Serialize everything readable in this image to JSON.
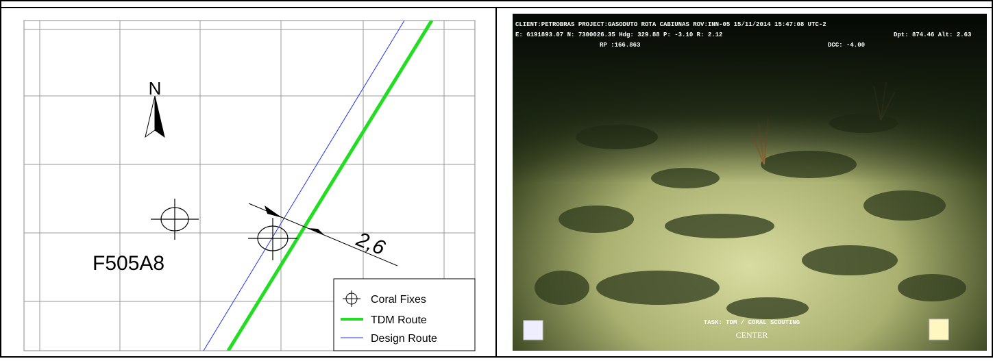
{
  "map": {
    "north_label": "N",
    "fix_label": "F505A8",
    "dimension_label": "2,6",
    "legend": [
      "Coral Fixes",
      "TDM Route",
      "Design Route"
    ]
  },
  "photo": {
    "overlay": {
      "line1": "CLIENT:PETROBRAS  PROJECT:GASODUTO ROTA CABIUNAS  ROV:INN-05    15/11/2014  15:47:08 UTC-2",
      "line2": "E: 6191893.07   N: 7300026.35   Hdg: 329.88 P: -3.10 R: 2.12",
      "line2_right": "Dpt: 874.46  Alt: 2.63",
      "rp": "RP :166.863",
      "dcc": "DCC: -4.00",
      "task": "TASK: TDM / CORAL SCOUTING",
      "center": "CENTER"
    }
  }
}
